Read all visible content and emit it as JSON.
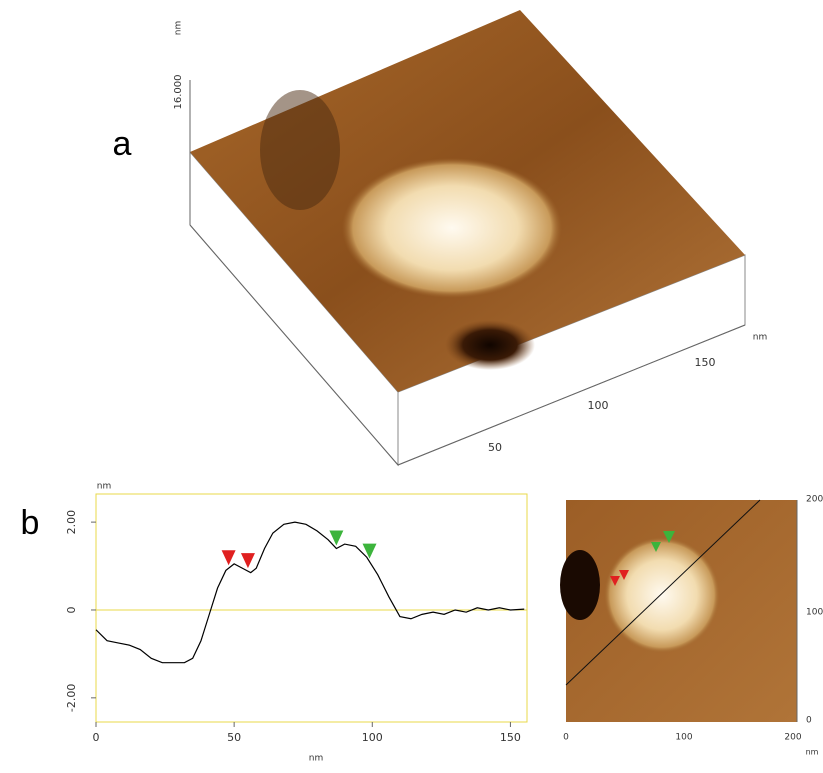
{
  "panels": {
    "a": "a",
    "b": "b"
  },
  "surface": {
    "z_unit": "nm",
    "z_tick": "16.000",
    "x_unit": "nm",
    "xticks": [
      "50",
      "100",
      "150"
    ]
  },
  "image": {
    "xticks": [
      "0",
      "100",
      "200"
    ],
    "yticks": [
      "0",
      "100",
      "200"
    ],
    "x_unit": "nm"
  },
  "chart_data": {
    "type": "line",
    "x_label": "nm",
    "y_label": "nm",
    "x": [
      0,
      4,
      8,
      12,
      16,
      20,
      24,
      28,
      32,
      35,
      38,
      41,
      44,
      47,
      50,
      53,
      56,
      58,
      61,
      64,
      68,
      72,
      76,
      80,
      84,
      87,
      90,
      94,
      98,
      102,
      106,
      110,
      114,
      118,
      122,
      126,
      130,
      134,
      138,
      142,
      146,
      150,
      155
    ],
    "series": [
      {
        "color": "#000000",
        "values": [
          -0.45,
          -0.7,
          -0.75,
          -0.8,
          -0.9,
          -1.1,
          -1.2,
          -1.2,
          -1.2,
          -1.1,
          -0.7,
          -0.1,
          0.5,
          0.9,
          1.05,
          0.95,
          0.85,
          0.95,
          1.4,
          1.75,
          1.95,
          2.0,
          1.95,
          1.8,
          1.6,
          1.4,
          1.5,
          1.45,
          1.2,
          0.8,
          0.3,
          -0.15,
          -0.2,
          -0.1,
          -0.05,
          -0.1,
          0.0,
          -0.05,
          0.05,
          0.0,
          0.05,
          0.0,
          0.02
        ]
      }
    ],
    "markers": [
      {
        "x": 48,
        "color": "#e02020"
      },
      {
        "x": 55,
        "color": "#e02020"
      },
      {
        "x": 87,
        "color": "#3cb43c"
      },
      {
        "x": 99,
        "color": "#3cb43c"
      }
    ],
    "xlim": [
      0,
      156
    ],
    "ylim": [
      -2.55,
      2.64
    ],
    "xticks": [
      0,
      50,
      100,
      150
    ],
    "yticks": [
      {
        "value": 2,
        "label": "2.00"
      },
      0,
      {
        "value": -2,
        "label": "-2.00"
      }
    ],
    "frame_color": "#e8d84a"
  }
}
